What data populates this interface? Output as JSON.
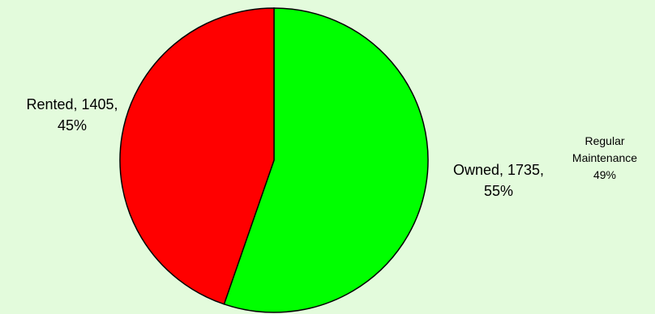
{
  "chart_data": {
    "type": "pie",
    "title": "",
    "slices": [
      {
        "label": "Owned",
        "value": 1735,
        "percent": "55%",
        "color": "#00ff00"
      },
      {
        "label": "Rented",
        "value": 1405,
        "percent": "45%",
        "color": "#ff0000"
      }
    ],
    "labels": {
      "owned_line1": "Owned, 1735,",
      "owned_line2": "55%",
      "rented_line1": "Rented, 1405,",
      "rented_line2": "45%"
    },
    "annotation": {
      "line1": "Regular",
      "line2": "Maintenance",
      "line3": "49%"
    },
    "background": "#e3fbdc"
  }
}
